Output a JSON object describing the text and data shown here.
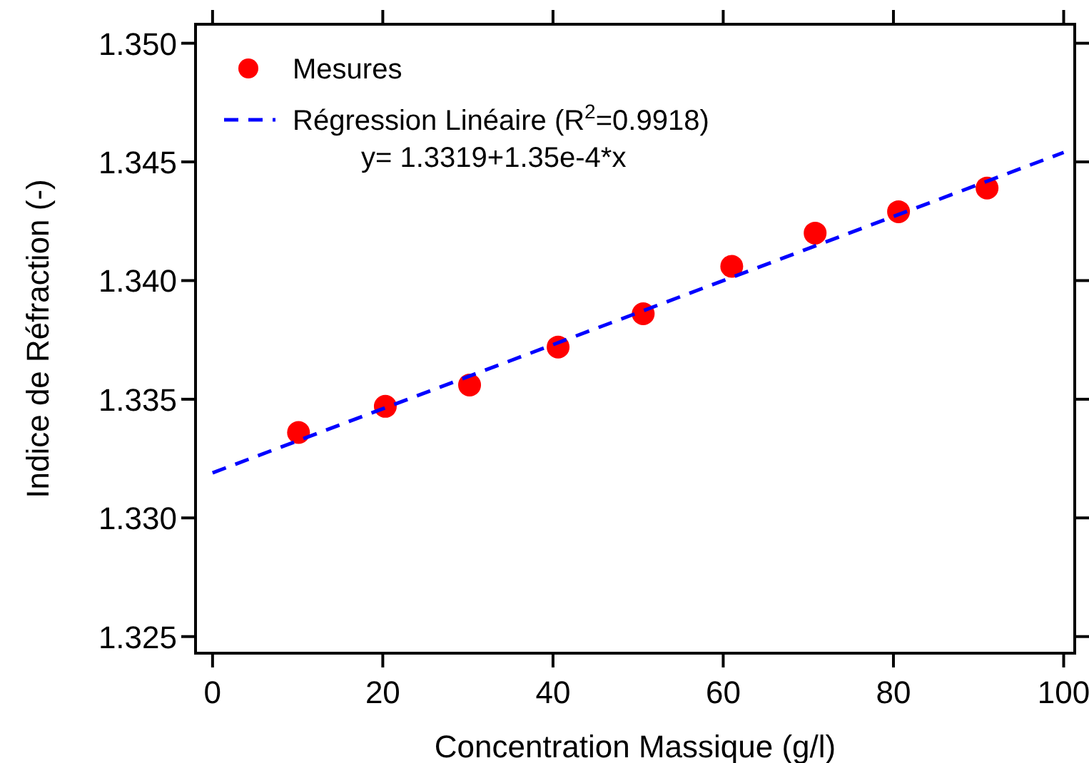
{
  "chart_data": {
    "type": "scatter",
    "xlabel": "Concentration Massique (g/l)",
    "ylabel": "Indice de Réfraction (-)",
    "xlim": [
      -2,
      101.3
    ],
    "ylim": [
      1.3243,
      1.3508
    ],
    "xticks": [
      0,
      20,
      40,
      60,
      80,
      100
    ],
    "yticks": [
      {
        "value": 1.325,
        "label": "1.325"
      },
      {
        "value": 1.33,
        "label": "1.330"
      },
      {
        "value": 1.335,
        "label": "1.335"
      },
      {
        "value": 1.34,
        "label": "1.340"
      },
      {
        "value": 1.345,
        "label": "1.345"
      },
      {
        "value": 1.35,
        "label": "1.350"
      }
    ],
    "grid": false,
    "legend": "top left",
    "series": [
      {
        "name": "Mesures",
        "color": "#ff0000",
        "marker": "circle",
        "x": [
          10.1,
          20.3,
          30.2,
          40.6,
          50.6,
          61,
          70.8,
          80.6,
          91
        ],
        "values": [
          1.3336,
          1.3347,
          1.3356,
          1.3372,
          1.3386,
          1.3406,
          1.342,
          1.3429,
          1.3439
        ]
      },
      {
        "name": "Régression Linéaire (R$^{2}$=0.9918)",
        "type": "line",
        "color": "#0000ff",
        "line_style": "dashed",
        "x": [
          0,
          100
        ],
        "values": [
          1.3319,
          1.3454
        ]
      }
    ],
    "annotations": [
      "y= 1.3319+1.35e-4*x"
    ]
  }
}
